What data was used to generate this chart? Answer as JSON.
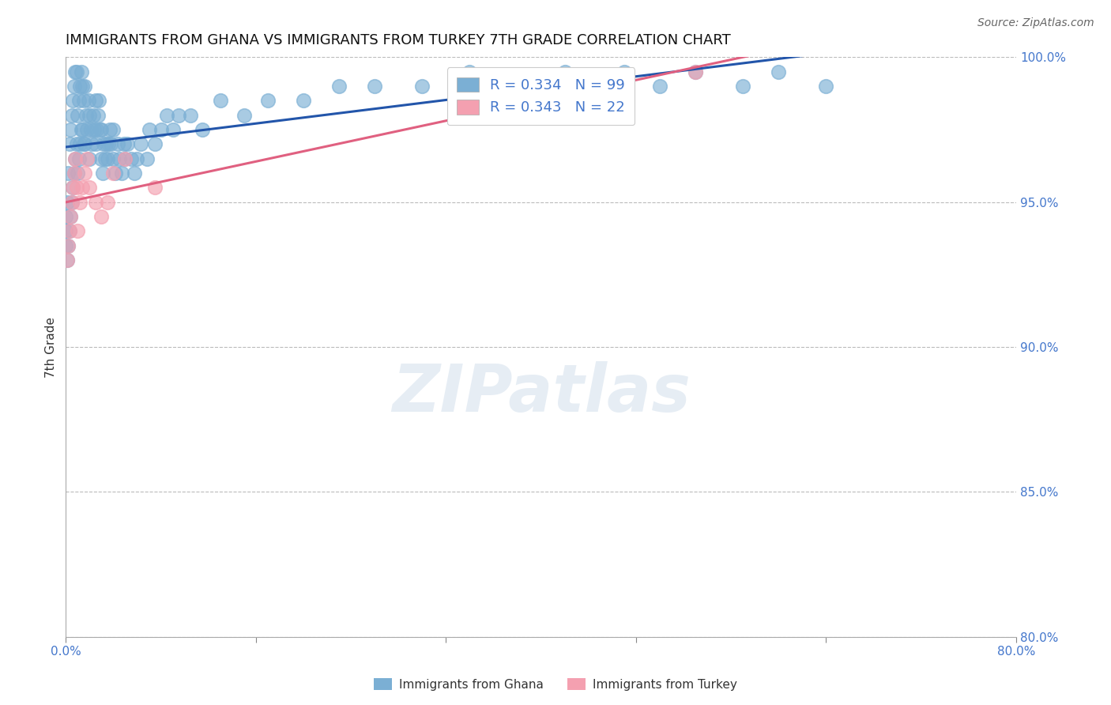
{
  "title": "IMMIGRANTS FROM GHANA VS IMMIGRANTS FROM TURKEY 7TH GRADE CORRELATION CHART",
  "source": "Source: ZipAtlas.com",
  "ylabel": "7th Grade",
  "xlim": [
    0.0,
    80.0
  ],
  "ylim": [
    80.0,
    100.0
  ],
  "yticks": [
    80.0,
    85.0,
    90.0,
    95.0,
    100.0
  ],
  "ytick_labels": [
    "80.0%",
    "85.0%",
    "90.0%",
    "95.0%",
    "100.0%"
  ],
  "xtick_positions": [
    0.0,
    16.0,
    32.0,
    48.0,
    64.0,
    80.0
  ],
  "xtick_labels": [
    "0.0%",
    "",
    "",
    "",
    "",
    "80.0%"
  ],
  "ghana_color": "#7bafd4",
  "turkey_color": "#f4a0b0",
  "ghana_line_color": "#2255aa",
  "turkey_line_color": "#e06080",
  "R_ghana": 0.334,
  "N_ghana": 99,
  "R_turkey": 0.343,
  "N_turkey": 22,
  "ghana_x": [
    0.0,
    0.0,
    0.0,
    0.1,
    0.1,
    0.2,
    0.2,
    0.3,
    0.3,
    0.4,
    0.4,
    0.5,
    0.5,
    0.6,
    0.6,
    0.7,
    0.7,
    0.8,
    0.8,
    0.9,
    0.9,
    1.0,
    1.0,
    1.1,
    1.1,
    1.2,
    1.2,
    1.3,
    1.3,
    1.4,
    1.4,
    1.5,
    1.5,
    1.6,
    1.6,
    1.7,
    1.8,
    1.9,
    2.0,
    2.0,
    2.1,
    2.2,
    2.3,
    2.4,
    2.5,
    2.5,
    2.6,
    2.7,
    2.8,
    2.9,
    3.0,
    3.0,
    3.1,
    3.2,
    3.3,
    3.4,
    3.5,
    3.6,
    3.7,
    3.8,
    4.0,
    4.0,
    4.2,
    4.4,
    4.5,
    4.7,
    4.9,
    5.0,
    5.2,
    5.5,
    5.8,
    6.0,
    6.3,
    6.8,
    7.0,
    7.5,
    8.0,
    8.5,
    9.0,
    9.5,
    10.5,
    11.5,
    13.0,
    15.0,
    17.0,
    20.0,
    23.0,
    26.0,
    30.0,
    34.0,
    38.0,
    42.0,
    45.0,
    47.0,
    50.0,
    53.0,
    57.0,
    60.0,
    64.0
  ],
  "ghana_y": [
    93.5,
    94.0,
    94.5,
    93.0,
    95.0,
    93.5,
    96.0,
    94.0,
    97.0,
    94.5,
    97.5,
    95.0,
    98.0,
    95.5,
    98.5,
    96.0,
    99.0,
    96.5,
    99.5,
    97.0,
    99.5,
    96.0,
    98.0,
    96.5,
    98.5,
    97.0,
    99.0,
    97.5,
    99.5,
    97.5,
    99.0,
    97.0,
    98.5,
    97.0,
    99.0,
    98.0,
    97.5,
    98.5,
    96.5,
    98.0,
    97.5,
    97.0,
    98.0,
    97.5,
    97.0,
    98.5,
    97.5,
    98.0,
    98.5,
    97.5,
    96.5,
    97.5,
    96.0,
    97.0,
    96.5,
    97.0,
    96.5,
    97.0,
    97.5,
    97.0,
    96.5,
    97.5,
    96.0,
    97.0,
    96.5,
    96.0,
    97.0,
    96.5,
    97.0,
    96.5,
    96.0,
    96.5,
    97.0,
    96.5,
    97.5,
    97.0,
    97.5,
    98.0,
    97.5,
    98.0,
    98.0,
    97.5,
    98.5,
    98.0,
    98.5,
    98.5,
    99.0,
    99.0,
    99.0,
    99.5,
    99.0,
    99.5,
    99.0,
    99.5,
    99.0,
    99.5,
    99.0,
    99.5,
    99.0
  ],
  "turkey_x": [
    0.1,
    0.2,
    0.3,
    0.4,
    0.5,
    0.6,
    0.7,
    0.8,
    0.9,
    1.0,
    1.2,
    1.4,
    1.6,
    1.8,
    2.0,
    2.5,
    3.0,
    3.5,
    4.0,
    5.0,
    7.5,
    53.0
  ],
  "turkey_y": [
    93.0,
    93.5,
    94.0,
    94.5,
    95.0,
    95.5,
    96.0,
    96.5,
    95.5,
    94.0,
    95.0,
    95.5,
    96.0,
    96.5,
    95.5,
    95.0,
    94.5,
    95.0,
    96.0,
    96.5,
    95.5,
    99.5
  ],
  "watermark_text": "ZIPatlas",
  "background_color": "#ffffff",
  "grid_color": "#bbbbbb",
  "axis_tick_color": "#4477cc",
  "title_fontsize": 13,
  "label_fontsize": 11,
  "legend_fontsize": 13,
  "ghana_legend": "Immigrants from Ghana",
  "turkey_legend": "Immigrants from Turkey"
}
